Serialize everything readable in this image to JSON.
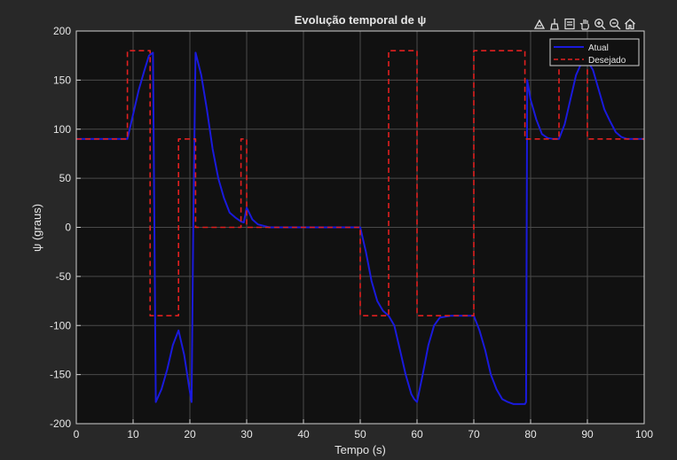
{
  "chart_data": {
    "type": "line",
    "title": "Evolução temporal  de  ψ",
    "xlabel": "Tempo (s)",
    "ylabel": "ψ  (graus)",
    "xlim": [
      0,
      100
    ],
    "ylim": [
      -200,
      200
    ],
    "xticks": [
      0,
      10,
      20,
      30,
      40,
      50,
      60,
      70,
      80,
      90,
      100
    ],
    "yticks": [
      -200,
      -150,
      -100,
      -50,
      0,
      50,
      100,
      150,
      200
    ],
    "grid": true,
    "legend_position": "top-right",
    "series": [
      {
        "name": "Atual",
        "color": "#1a1adc",
        "style": "solid",
        "x": [
          0,
          9,
          10,
          11,
          12,
          12.8,
          13.5,
          14,
          15,
          16,
          17,
          18,
          19,
          19.8,
          20.3,
          20.6,
          21,
          22,
          23,
          24,
          25,
          26,
          27,
          28,
          29,
          29.5,
          30,
          31,
          32,
          34,
          40,
          50,
          51,
          52,
          53,
          54,
          55,
          56,
          57,
          58,
          59,
          59.5,
          60,
          61,
          62,
          63,
          64,
          66,
          68,
          70,
          71,
          72,
          73,
          74,
          75,
          76,
          77,
          78,
          79,
          79.2,
          79.4,
          80,
          81,
          82,
          83,
          84,
          85,
          86,
          87,
          88,
          89,
          90,
          91,
          92,
          93,
          94,
          95,
          96,
          97,
          100
        ],
        "y": [
          90,
          90,
          115,
          140,
          160,
          175,
          178,
          -178,
          -165,
          -145,
          -120,
          -105,
          -130,
          -160,
          -178,
          0,
          178,
          155,
          120,
          80,
          50,
          30,
          15,
          10,
          6,
          5,
          20,
          8,
          3,
          0,
          0,
          0,
          -25,
          -55,
          -75,
          -85,
          -90,
          -100,
          -125,
          -150,
          -170,
          -175,
          -178,
          -150,
          -120,
          -100,
          -92,
          -90,
          -90,
          -90,
          -105,
          -125,
          -150,
          -165,
          -175,
          -178,
          -180,
          -180,
          -180,
          -178,
          150,
          130,
          110,
          95,
          91,
          90,
          90,
          105,
          130,
          155,
          168,
          170,
          160,
          140,
          120,
          108,
          97,
          92,
          90,
          90
        ]
      },
      {
        "name": "Desejado",
        "color": "#e02020",
        "style": "dashed",
        "x": [
          0,
          9,
          9,
          13,
          13,
          18,
          18,
          21,
          21,
          29,
          29,
          30,
          30,
          50,
          50,
          55,
          55,
          60,
          60,
          70,
          70,
          79,
          79,
          85,
          85,
          90,
          90,
          100
        ],
        "y": [
          90,
          90,
          180,
          180,
          -90,
          -90,
          90,
          90,
          0,
          0,
          90,
          90,
          0,
          0,
          -90,
          -90,
          180,
          180,
          -90,
          -90,
          180,
          180,
          90,
          90,
          180,
          180,
          90,
          90
        ]
      }
    ]
  },
  "colors": {
    "figure_bg": "#282828",
    "axes_bg": "#111111",
    "grid": "#4a4a4a",
    "text": "#e6e6e6",
    "axis_line": "#d0d0d0",
    "legend_bg": "#111111"
  },
  "toolbar": {
    "buttons": [
      "export-icon",
      "brush-icon",
      "legend-icon",
      "pan-icon",
      "zoom-in-icon",
      "zoom-out-icon",
      "home-icon"
    ]
  }
}
